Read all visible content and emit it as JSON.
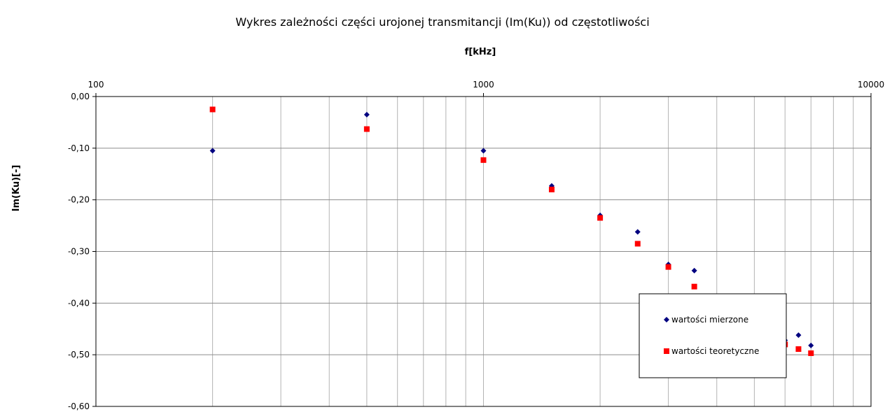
{
  "chart_data": {
    "type": "scatter",
    "title": "Wykres zależności części urojonej transmitancji (Im(Ku)) od częstotliwości",
    "xlabel": "f[kHz]",
    "ylabel": "Im(Ku)[-]",
    "x_scale": "log",
    "x_axis_position": "top",
    "xlim": [
      100,
      10000
    ],
    "ylim": [
      -0.6,
      0.0
    ],
    "x_ticks": [
      {
        "value": 100,
        "label": "100"
      },
      {
        "value": 1000,
        "label": "1000"
      },
      {
        "value": 10000,
        "label": "10000"
      }
    ],
    "y_ticks": [
      {
        "value": 0.0,
        "label": "0,00"
      },
      {
        "value": -0.1,
        "label": "-0,10"
      },
      {
        "value": -0.2,
        "label": "-0,20"
      },
      {
        "value": -0.3,
        "label": "-0,30"
      },
      {
        "value": -0.4,
        "label": "-0,40"
      },
      {
        "value": -0.5,
        "label": "-0,50"
      },
      {
        "value": -0.6,
        "label": "-0,60"
      }
    ],
    "grid": true,
    "legend_position": "bottom-right",
    "series": [
      {
        "name": "wartości mierzone",
        "marker": "diamond",
        "color": "#000080",
        "points": [
          {
            "x": 200,
            "y": -0.105
          },
          {
            "x": 500,
            "y": -0.035
          },
          {
            "x": 1000,
            "y": -0.105
          },
          {
            "x": 1500,
            "y": -0.173
          },
          {
            "x": 2000,
            "y": -0.23
          },
          {
            "x": 2500,
            "y": -0.262
          },
          {
            "x": 3000,
            "y": -0.325
          },
          {
            "x": 3500,
            "y": -0.337
          },
          {
            "x": 6000,
            "y": -0.472
          },
          {
            "x": 6500,
            "y": -0.462
          },
          {
            "x": 7000,
            "y": -0.482
          }
        ]
      },
      {
        "name": "wartości teoretyczne",
        "marker": "square",
        "color": "#ff0000",
        "points": [
          {
            "x": 200,
            "y": -0.025
          },
          {
            "x": 500,
            "y": -0.063
          },
          {
            "x": 1000,
            "y": -0.123
          },
          {
            "x": 1500,
            "y": -0.18
          },
          {
            "x": 2000,
            "y": -0.235
          },
          {
            "x": 2500,
            "y": -0.285
          },
          {
            "x": 3000,
            "y": -0.33
          },
          {
            "x": 3500,
            "y": -0.368
          },
          {
            "x": 6000,
            "y": -0.48
          },
          {
            "x": 6500,
            "y": -0.489
          },
          {
            "x": 7000,
            "y": -0.497
          }
        ]
      }
    ]
  }
}
